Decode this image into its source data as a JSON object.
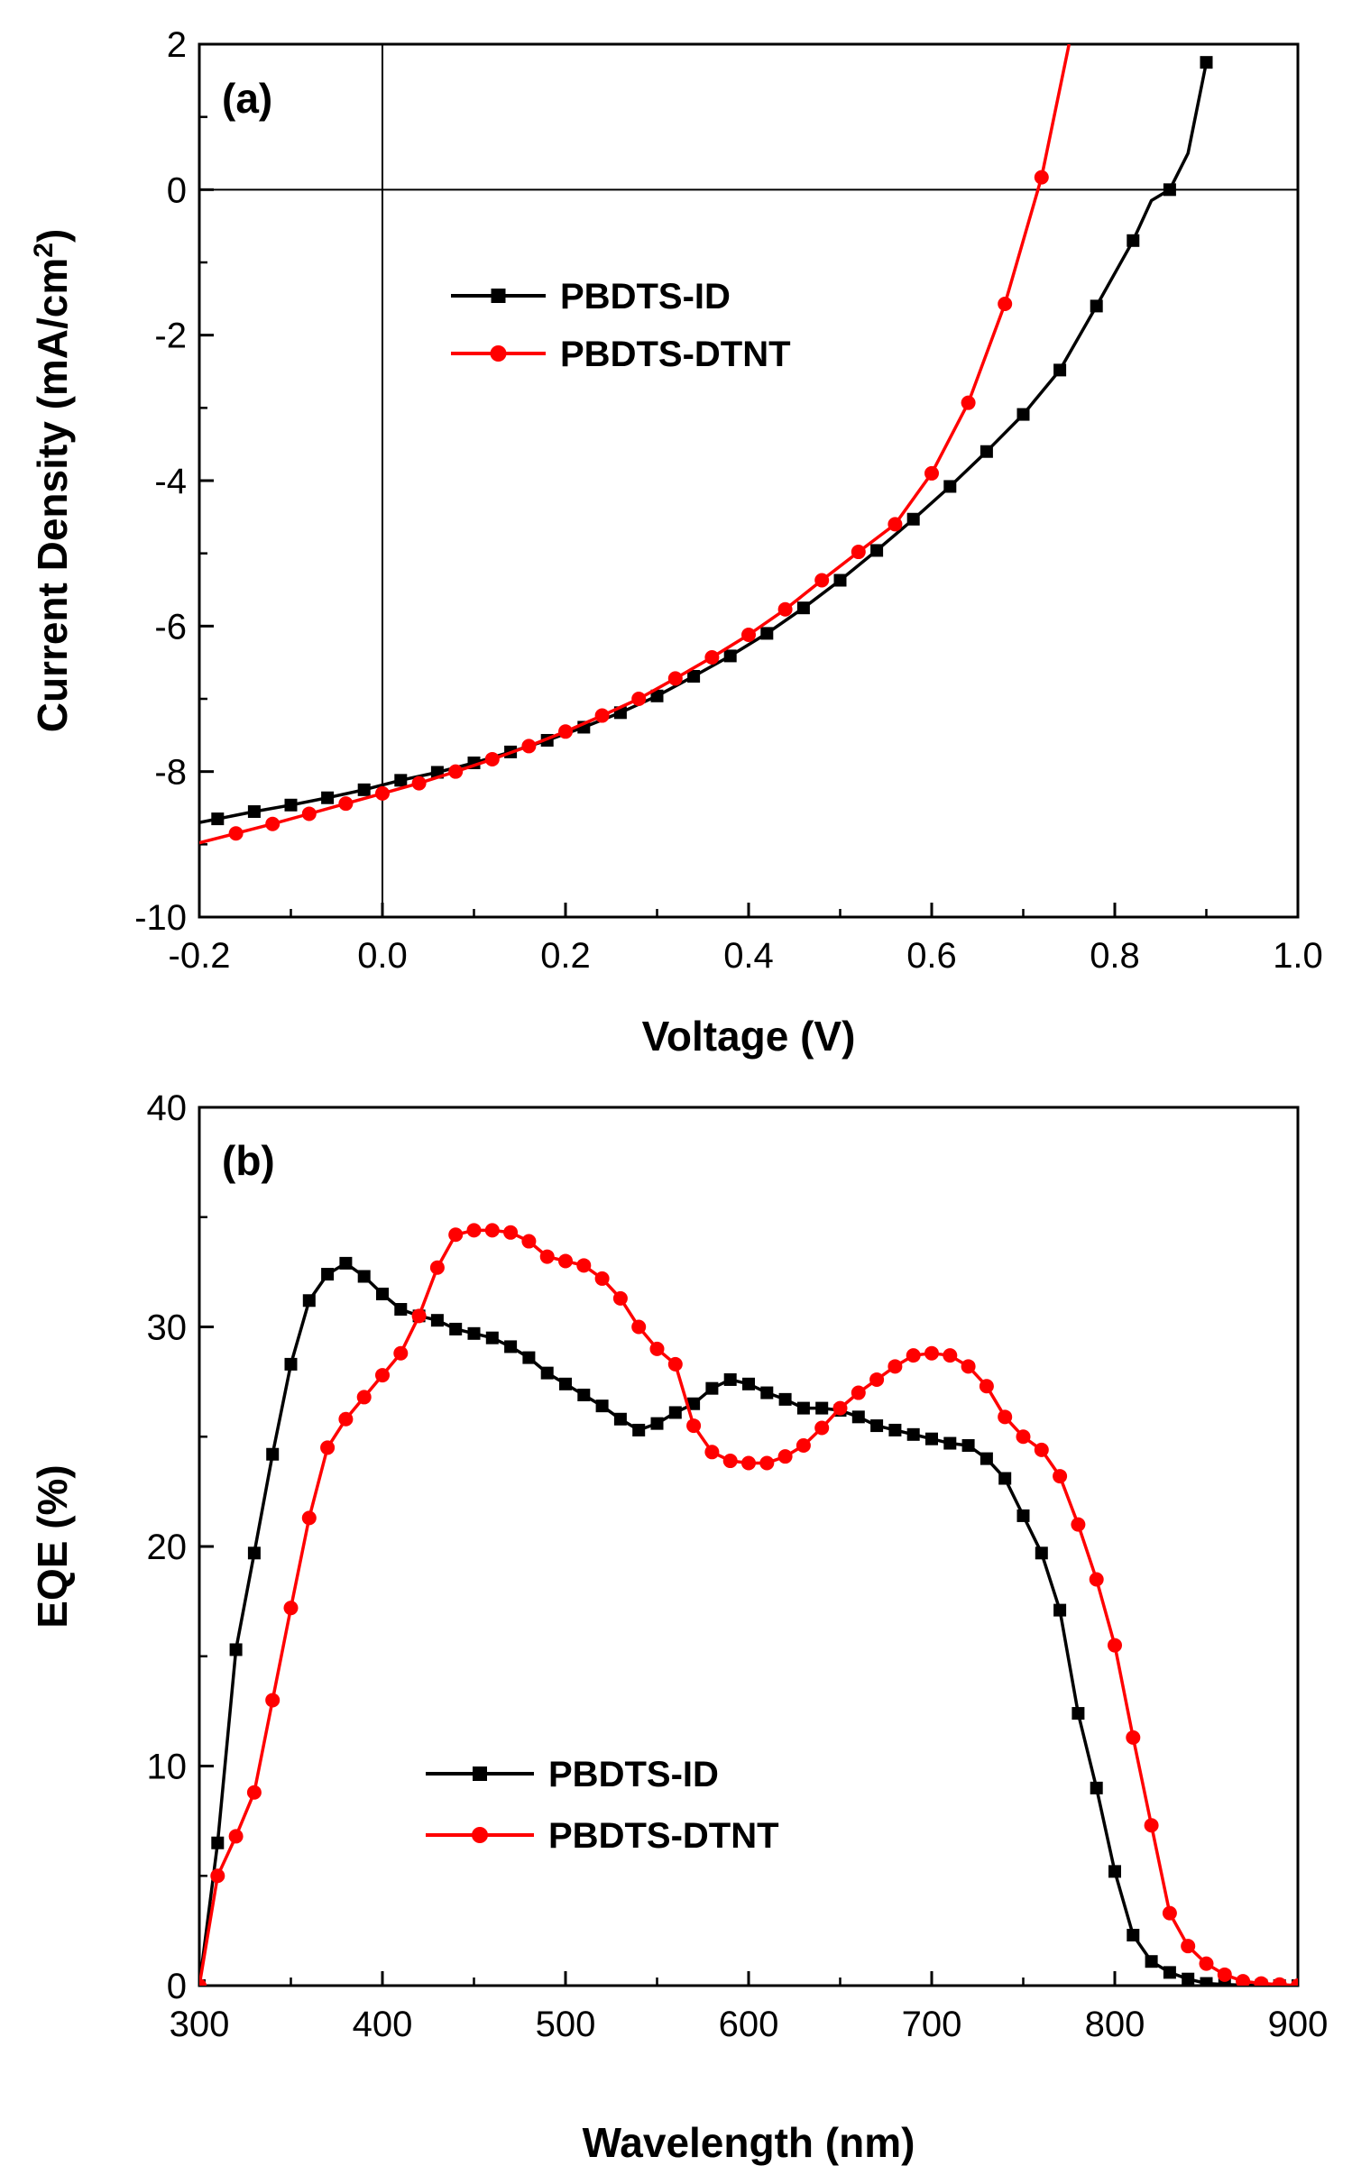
{
  "chart_data": [
    {
      "type": "line",
      "panel_label": "(a)",
      "xlabel": "Voltage (V)",
      "ylabel": "Current Density (mA/cm",
      "ylabel_sup": "2",
      "ylabel_end": ")",
      "xlim": [
        -0.2,
        1.0
      ],
      "ylim": [
        -10,
        2
      ],
      "xticks": [
        -0.2,
        0.0,
        0.2,
        0.4,
        0.6,
        0.8,
        1.0
      ],
      "xtick_labels": [
        "-0.2",
        "0.0",
        "0.2",
        "0.4",
        "0.6",
        "0.8",
        "1.0"
      ],
      "yticks": [
        -10,
        -8,
        -6,
        -4,
        -2,
        0,
        2
      ],
      "ytick_labels": [
        "-10",
        "-8",
        "-6",
        "-4",
        "-2",
        "0",
        "2"
      ],
      "reference_lines": {
        "x": 0,
        "y": 0
      },
      "legend_position": "upper-middle-left",
      "series": [
        {
          "name": "PBDTS-ID",
          "color": "#000000",
          "marker": "square",
          "x": [
            -0.2,
            -0.18,
            -0.14,
            -0.1,
            -0.06,
            -0.02,
            0.02,
            0.06,
            0.1,
            0.14,
            0.18,
            0.22,
            0.26,
            0.3,
            0.34,
            0.38,
            0.42,
            0.46,
            0.5,
            0.54,
            0.58,
            0.62,
            0.66,
            0.7,
            0.74,
            0.78,
            0.82,
            0.84,
            0.86,
            0.88,
            0.9
          ],
          "y": [
            -8.7,
            -8.65,
            -8.55,
            -8.46,
            -8.36,
            -8.25,
            -8.12,
            -8.01,
            -7.88,
            -7.73,
            -7.57,
            -7.39,
            -7.19,
            -6.96,
            -6.69,
            -6.41,
            -6.1,
            -5.75,
            -5.37,
            -4.96,
            -4.53,
            -4.08,
            -3.6,
            -3.09,
            -2.48,
            -1.6,
            -0.7,
            -0.15,
            0.0,
            0.5,
            1.75
          ],
          "markers_x": [
            -0.18,
            -0.14,
            -0.1,
            -0.06,
            -0.02,
            0.02,
            0.06,
            0.1,
            0.14,
            0.18,
            0.22,
            0.26,
            0.3,
            0.34,
            0.38,
            0.42,
            0.46,
            0.5,
            0.54,
            0.58,
            0.62,
            0.66,
            0.7,
            0.74,
            0.78,
            0.82,
            0.86,
            0.9
          ]
        },
        {
          "name": "PBDTS-DTNT",
          "color": "#ff0000",
          "marker": "circle",
          "x": [
            -0.2,
            -0.16,
            -0.12,
            -0.08,
            -0.04,
            0.0,
            0.04,
            0.08,
            0.12,
            0.16,
            0.2,
            0.24,
            0.28,
            0.32,
            0.36,
            0.4,
            0.44,
            0.48,
            0.52,
            0.56,
            0.6,
            0.64,
            0.68,
            0.72,
            0.75
          ],
          "y": [
            -8.98,
            -8.85,
            -8.72,
            -8.58,
            -8.44,
            -8.3,
            -8.16,
            -8.0,
            -7.83,
            -7.65,
            -7.45,
            -7.23,
            -7.0,
            -6.72,
            -6.43,
            -6.12,
            -5.77,
            -5.37,
            -4.98,
            -4.6,
            -3.9,
            -2.93,
            -1.57,
            0.17,
            2.0
          ],
          "markers_x": [
            -0.16,
            -0.12,
            -0.08,
            -0.04,
            0.0,
            0.04,
            0.08,
            0.12,
            0.16,
            0.2,
            0.24,
            0.28,
            0.32,
            0.36,
            0.4,
            0.44,
            0.48,
            0.52,
            0.56,
            0.6,
            0.64,
            0.68,
            0.72
          ]
        }
      ]
    },
    {
      "type": "line",
      "panel_label": "(b)",
      "xlabel": "Wavelength (nm)",
      "ylabel": "EQE (%)",
      "xlim": [
        300,
        900
      ],
      "ylim": [
        0,
        40
      ],
      "xticks": [
        300,
        400,
        500,
        600,
        700,
        800,
        900
      ],
      "xtick_labels": [
        "300",
        "400",
        "500",
        "600",
        "700",
        "800",
        "900"
      ],
      "yticks": [
        0,
        10,
        20,
        30,
        40
      ],
      "ytick_labels": [
        "0",
        "10",
        "20",
        "30",
        "40"
      ],
      "legend_position": "lower-middle",
      "series": [
        {
          "name": "PBDTS-ID",
          "color": "#000000",
          "marker": "square",
          "x": [
            300,
            310,
            320,
            330,
            340,
            350,
            360,
            370,
            380,
            390,
            400,
            410,
            420,
            430,
            440,
            450,
            460,
            470,
            480,
            490,
            500,
            510,
            520,
            530,
            540,
            550,
            560,
            570,
            580,
            590,
            600,
            610,
            620,
            630,
            640,
            650,
            660,
            670,
            680,
            690,
            700,
            710,
            720,
            730,
            740,
            750,
            760,
            770,
            780,
            790,
            800,
            810,
            820,
            830,
            840,
            850,
            860,
            870,
            880,
            890,
            900
          ],
          "y": [
            0,
            6.5,
            15.3,
            19.7,
            24.2,
            28.3,
            31.2,
            32.4,
            32.9,
            32.3,
            31.5,
            30.8,
            30.5,
            30.3,
            29.9,
            29.7,
            29.5,
            29.1,
            28.6,
            27.9,
            27.4,
            26.9,
            26.4,
            25.8,
            25.3,
            25.6,
            26.1,
            26.5,
            27.2,
            27.6,
            27.4,
            27.0,
            26.7,
            26.3,
            26.3,
            26.2,
            25.9,
            25.5,
            25.3,
            25.1,
            24.9,
            24.7,
            24.6,
            24.0,
            23.1,
            21.4,
            19.7,
            17.1,
            12.4,
            9.0,
            5.2,
            2.3,
            1.1,
            0.6,
            0.3,
            0.1,
            0.05,
            0.02,
            0.01,
            0.0,
            0.0
          ]
        },
        {
          "name": "PBDTS-DTNT",
          "color": "#ff0000",
          "marker": "circle",
          "x": [
            300,
            310,
            320,
            330,
            340,
            350,
            360,
            370,
            380,
            390,
            400,
            410,
            420,
            430,
            440,
            450,
            460,
            470,
            480,
            490,
            500,
            510,
            520,
            530,
            540,
            550,
            560,
            570,
            580,
            590,
            600,
            610,
            620,
            630,
            640,
            650,
            660,
            670,
            680,
            690,
            700,
            710,
            720,
            730,
            740,
            750,
            760,
            770,
            780,
            790,
            800,
            810,
            820,
            830,
            840,
            850,
            860,
            870,
            880,
            890,
            900
          ],
          "y": [
            0,
            5.0,
            6.8,
            8.8,
            13.0,
            17.2,
            21.3,
            24.5,
            25.8,
            26.8,
            27.8,
            28.8,
            30.5,
            32.7,
            34.2,
            34.4,
            34.4,
            34.3,
            33.9,
            33.2,
            33.0,
            32.8,
            32.2,
            31.3,
            30.0,
            29.0,
            28.3,
            25.5,
            24.3,
            23.9,
            23.8,
            23.8,
            24.1,
            24.6,
            25.4,
            26.3,
            27.0,
            27.6,
            28.2,
            28.7,
            28.8,
            28.7,
            28.2,
            27.3,
            25.9,
            25.0,
            24.4,
            23.2,
            21.0,
            18.5,
            15.5,
            11.3,
            7.3,
            3.3,
            1.8,
            1.0,
            0.5,
            0.2,
            0.1,
            0.05,
            0.0
          ]
        }
      ]
    }
  ]
}
